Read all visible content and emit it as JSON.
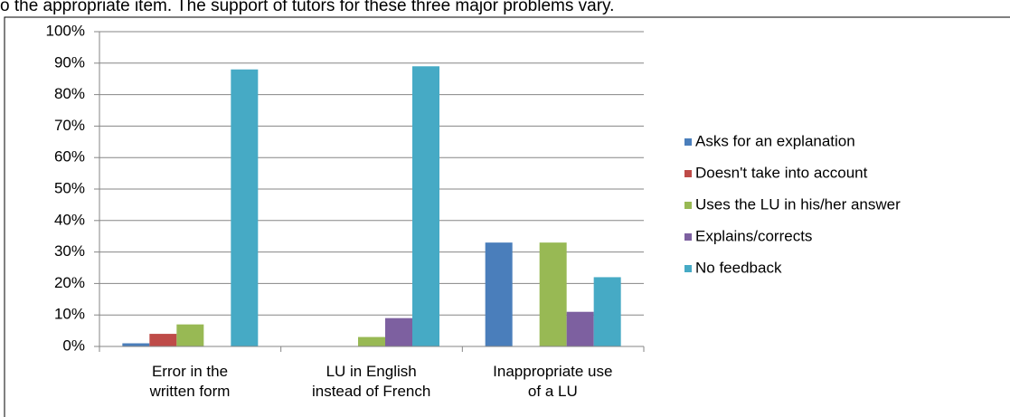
{
  "caption": "o the appropriate item. The support of tutors for these three major problems vary.",
  "chart_data": {
    "type": "bar",
    "categories": [
      "Error in the\nwritten form",
      "LU in English\ninstead of French",
      "Inappropriate use\nof a LU"
    ],
    "series": [
      {
        "name": "Asks for an explanation",
        "color": "#4a7ebb",
        "values": [
          1,
          0,
          33
        ]
      },
      {
        "name": "Doesn't take into account",
        "color": "#be4b48",
        "values": [
          4,
          0,
          0
        ]
      },
      {
        "name": "Uses the LU in his/her answer",
        "color": "#98b954",
        "values": [
          7,
          3,
          33
        ]
      },
      {
        "name": "Explains/corrects",
        "color": "#7d60a0",
        "values": [
          0,
          9,
          11
        ]
      },
      {
        "name": "No feedback",
        "color": "#46aac5",
        "values": [
          88,
          89,
          22
        ]
      }
    ],
    "ylim": [
      0,
      100
    ],
    "yticks": [
      {
        "value": 0,
        "label": "0%"
      },
      {
        "value": 10,
        "label": "10%"
      },
      {
        "value": 20,
        "label": "20%"
      },
      {
        "value": 30,
        "label": "30%"
      },
      {
        "value": 40,
        "label": "40%"
      },
      {
        "value": 50,
        "label": "50%"
      },
      {
        "value": 60,
        "label": "60%"
      },
      {
        "value": 70,
        "label": "70%"
      },
      {
        "value": 80,
        "label": "80%"
      },
      {
        "value": 90,
        "label": "90%"
      },
      {
        "value": 100,
        "label": "100%"
      }
    ],
    "grid": true,
    "legend": "right"
  }
}
